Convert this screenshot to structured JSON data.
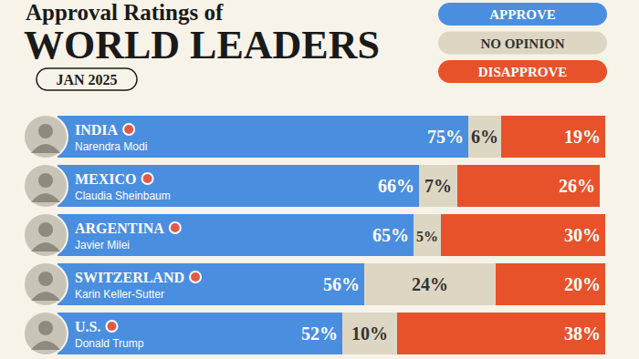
{
  "chart_data": {
    "type": "bar",
    "orientation": "horizontal",
    "stacked": true,
    "data_labels": true,
    "tick_labels": false,
    "grid": false,
    "legend": "top-right",
    "subtitle": "Approval Ratings of",
    "title": "WORLD LEADERS",
    "annotations": [
      "JAN 2025"
    ],
    "categories": [
      "INDIA",
      "MEXICO",
      "ARGENTINA",
      "SWITZERLAND",
      "U.S."
    ],
    "leaders": [
      "Narendra Modi",
      "Claudia Sheinbaum",
      "Javier Milei",
      "Karin Keller-Sutter",
      "Donald Trump"
    ],
    "xlim": [
      0,
      100
    ],
    "xticks": [],
    "series": [
      {
        "name": "APPROVE",
        "color": "#4a8ee0",
        "values": [
          75,
          66,
          65,
          56,
          52
        ],
        "value_labels": [
          "75%",
          "66%",
          "65%",
          "56%",
          "52%"
        ]
      },
      {
        "name": "NO OPINION",
        "color": "#ddd6c3",
        "values": [
          6,
          7,
          5,
          24,
          10
        ],
        "value_labels": [
          "6%",
          "7%",
          "5%",
          "24%",
          "10%"
        ]
      },
      {
        "name": "DISAPPROVE",
        "color": "#e8522a",
        "values": [
          19,
          26,
          30,
          20,
          38
        ],
        "value_labels": [
          "19%",
          "26%",
          "30%",
          "20%",
          "38%"
        ]
      }
    ]
  }
}
